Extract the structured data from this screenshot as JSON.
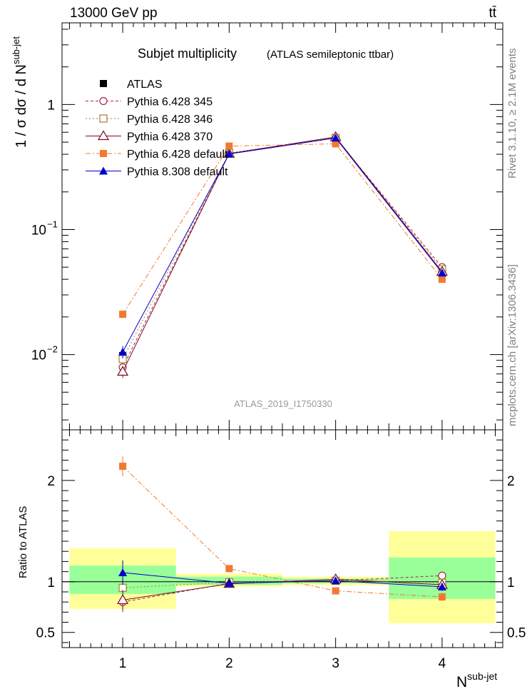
{
  "header": {
    "energy_label": "13000 GeV pp",
    "process_label": "tt̄"
  },
  "side_text": {
    "generator": "Rivet 3.1.10, ≥ 2.1M events",
    "source": "mcplots.cern.ch [arXiv:1306.3436]"
  },
  "chart_data": {
    "type": "line",
    "title": "Subjet multiplicity",
    "subtitle": "(ATLAS semileptonic ttbar)",
    "analysis_id": "ATLAS_2019_I1750330",
    "xlabel": "N^sub-jet",
    "ylabel": "1 / σ dσ / d N^sub-jet",
    "ratio_ylabel": "Ratio to ATLAS",
    "x": [
      1,
      2,
      3,
      4
    ],
    "xlim": [
      0.43,
      4.57
    ],
    "x_ticks": [
      "1",
      "2",
      "3",
      "4"
    ],
    "ylim": [
      0.0025,
      4.5
    ],
    "yscale": "log",
    "y_ticks": [
      "10^-2",
      "10^-1",
      "1"
    ],
    "ratio_ylim": [
      0.35,
      2.5
    ],
    "ratio_ticks": [
      "0.5",
      "1",
      "2"
    ],
    "ratio_bands": [
      {
        "xrange": [
          0.5,
          1.5
        ],
        "inner": [
          0.88,
          1.16
        ],
        "outer": [
          0.73,
          1.33
        ]
      },
      {
        "xrange": [
          1.5,
          2.5
        ],
        "inner": [
          0.97,
          1.05
        ],
        "outer": [
          0.95,
          1.08
        ]
      },
      {
        "xrange": [
          2.5,
          3.5
        ],
        "inner": [
          0.985,
          1.03
        ],
        "outer": [
          0.965,
          1.05
        ]
      },
      {
        "xrange": [
          3.5,
          4.5
        ],
        "inner": [
          0.83,
          1.24
        ],
        "outer": [
          0.59,
          1.5
        ]
      }
    ],
    "reference": {
      "name": "ATLAS",
      "values": [
        0.0098,
        0.41,
        0.535,
        0.047
      ],
      "errors": [
        0.0009,
        0.01,
        0.01,
        0.004
      ],
      "color": "#000000"
    },
    "series": [
      {
        "name": "Pythia 6.428 345",
        "values": [
          0.0079,
          0.405,
          0.54,
          0.05
        ],
        "errors": [
          0.0009,
          0.01,
          0.01,
          0.002
        ],
        "ratio": [
          0.8,
          0.985,
          1.01,
          1.06
        ],
        "ratio_errors": [
          0.1,
          0.01,
          0.01,
          0.04
        ],
        "color": "#a52a44",
        "dash": "4,3",
        "marker": "open-circle"
      },
      {
        "name": "Pythia 6.428 346",
        "values": [
          0.0092,
          0.41,
          0.54,
          0.048
        ],
        "errors": [
          0.0009,
          0.01,
          0.01,
          0.002
        ],
        "ratio": [
          0.94,
          0.995,
          1.01,
          0.99
        ],
        "ratio_errors": [
          0.09,
          0.01,
          0.01,
          0.04
        ],
        "color": "#a0803a",
        "dash": "2,3",
        "marker": "open-square"
      },
      {
        "name": "Pythia 6.428 370",
        "values": [
          0.0073,
          0.405,
          0.55,
          0.046
        ],
        "errors": [
          0.0008,
          0.01,
          0.01,
          0.002
        ],
        "ratio": [
          0.82,
          0.98,
          1.025,
          0.97
        ],
        "ratio_errors": [
          0.1,
          0.01,
          0.01,
          0.04
        ],
        "color": "#7a0a22",
        "dash": "",
        "marker": "open-triangle"
      },
      {
        "name": "Pythia 6.428 default",
        "values": [
          0.021,
          0.465,
          0.485,
          0.04
        ],
        "errors": [
          0.0015,
          0.01,
          0.01,
          0.002
        ],
        "ratio": [
          2.14,
          1.13,
          0.91,
          0.85
        ],
        "ratio_errors": [
          0.1,
          0.01,
          0.01,
          0.04
        ],
        "color": "#f07a30",
        "dash": "7,3,2,3",
        "marker": "filled-square"
      },
      {
        "name": "Pythia 8.308 default",
        "values": [
          0.0105,
          0.402,
          0.54,
          0.045
        ],
        "errors": [
          0.0012,
          0.01,
          0.01,
          0.002
        ],
        "ratio": [
          1.09,
          0.985,
          1.01,
          0.95
        ],
        "ratio_errors": [
          0.12,
          0.01,
          0.01,
          0.04
        ],
        "color": "#0000cc",
        "dash": "",
        "marker": "filled-triangle"
      }
    ],
    "legend_position": "top-left",
    "colors": {
      "band_inner": "#99ff99",
      "band_outer": "#ffff99"
    }
  }
}
